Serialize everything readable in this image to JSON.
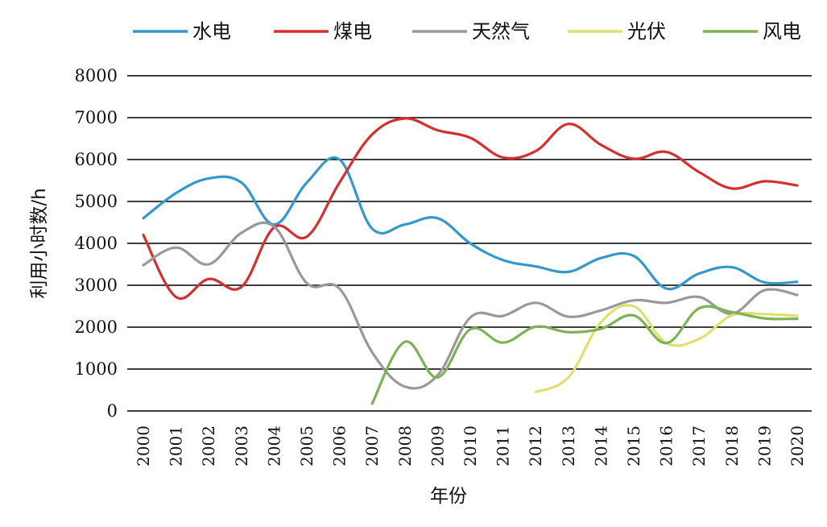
{
  "chart_data": {
    "type": "line",
    "xlabel": "年份",
    "ylabel": "利用小时数/h",
    "ylim": [
      0,
      8000
    ],
    "yticks": [
      "0",
      "1000",
      "2000",
      "3000",
      "4000",
      "5000",
      "6000",
      "7000",
      "8000"
    ],
    "categories": [
      "2000",
      "2001",
      "2002",
      "2003",
      "2004",
      "2005",
      "2006",
      "2007",
      "2008",
      "2009",
      "2010",
      "2011",
      "2012",
      "2013",
      "2014",
      "2015",
      "2016",
      "2017",
      "2018",
      "2019",
      "2020"
    ],
    "grid": true,
    "legend_position": "top",
    "series": [
      {
        "name": "水电",
        "color": "#3399cc",
        "values": [
          4600,
          5200,
          5550,
          5450,
          4450,
          5450,
          6000,
          4350,
          4450,
          4600,
          4000,
          3600,
          3450,
          3320,
          3650,
          3700,
          2920,
          3280,
          3430,
          3070,
          3080
        ]
      },
      {
        "name": "煤电",
        "color": "#d43030",
        "values": [
          4200,
          2720,
          3150,
          2960,
          4380,
          4160,
          5450,
          6600,
          6980,
          6700,
          6520,
          6050,
          6200,
          6850,
          6350,
          6020,
          6180,
          5700,
          5310,
          5480,
          5380
        ]
      },
      {
        "name": "天然气",
        "color": "#999999",
        "values": [
          3480,
          3900,
          3500,
          4250,
          4400,
          3050,
          2920,
          1400,
          580,
          850,
          2230,
          2270,
          2580,
          2250,
          2400,
          2640,
          2580,
          2720,
          2320,
          2880,
          2770
        ]
      },
      {
        "name": "光伏",
        "color": "#e0e070",
        "values": [
          null,
          null,
          null,
          null,
          null,
          null,
          null,
          null,
          null,
          null,
          null,
          null,
          450,
          800,
          2120,
          2500,
          1620,
          1720,
          2280,
          2310,
          2270
        ]
      },
      {
        "name": "风电",
        "color": "#7db354",
        "values": [
          null,
          null,
          null,
          null,
          null,
          null,
          null,
          180,
          1650,
          800,
          1950,
          1630,
          2010,
          1880,
          1960,
          2280,
          1620,
          2450,
          2360,
          2210,
          2200
        ]
      }
    ]
  }
}
